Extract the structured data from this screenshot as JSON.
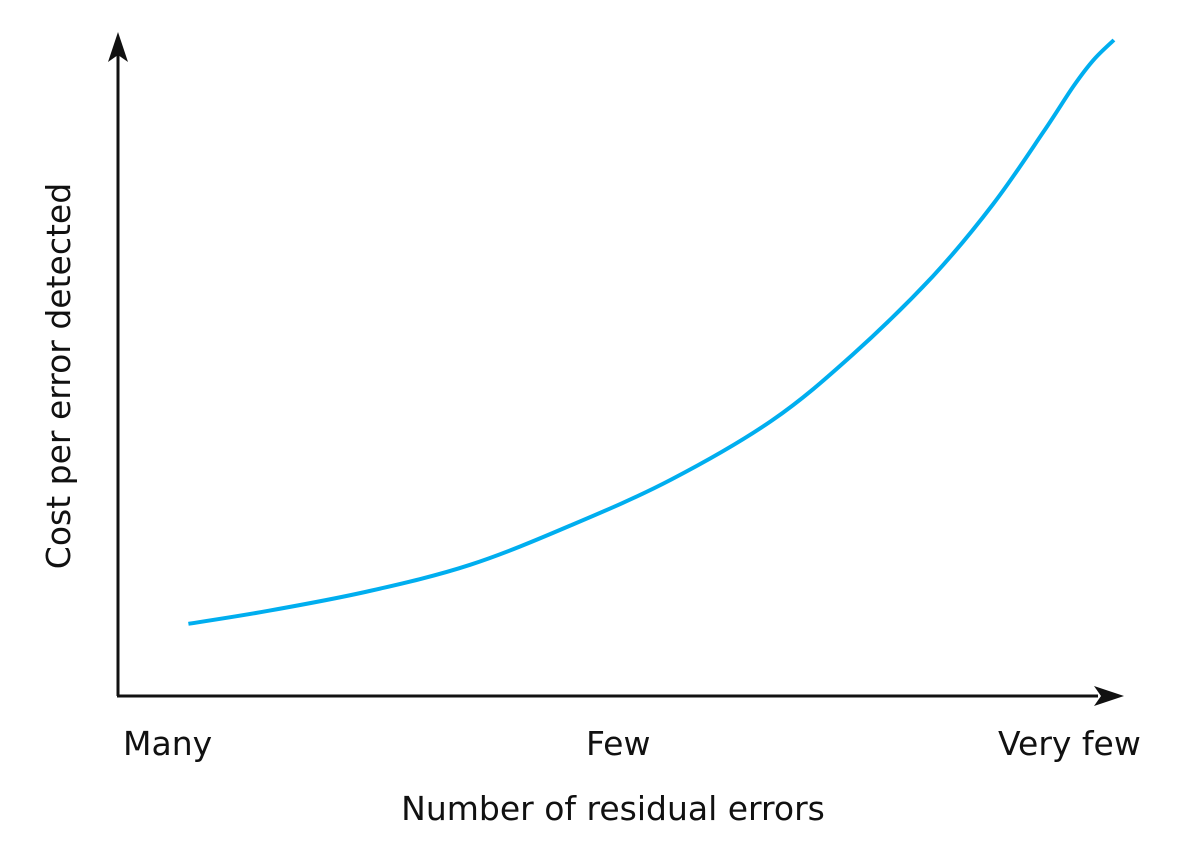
{
  "chart_data": {
    "type": "line",
    "title": "",
    "xlabel": "Number of residual errors",
    "ylabel": "Cost per error detected",
    "x_ticks": [
      "Many",
      "Few",
      "Very few"
    ],
    "grid": false,
    "legend": "none",
    "series": [
      {
        "color": "#00aeef",
        "x": [
          0.07,
          0.15,
          0.25,
          0.35,
          0.45,
          0.55,
          0.65,
          0.73,
          0.81,
          0.87,
          0.92,
          0.95,
          0.97,
          0.99
        ],
        "y": [
          0.11,
          0.13,
          0.16,
          0.2,
          0.26,
          0.33,
          0.42,
          0.52,
          0.64,
          0.75,
          0.86,
          0.93,
          0.97,
          1.0
        ]
      }
    ],
    "xlim": [
      0,
      1
    ],
    "ylim": [
      0,
      1
    ]
  }
}
